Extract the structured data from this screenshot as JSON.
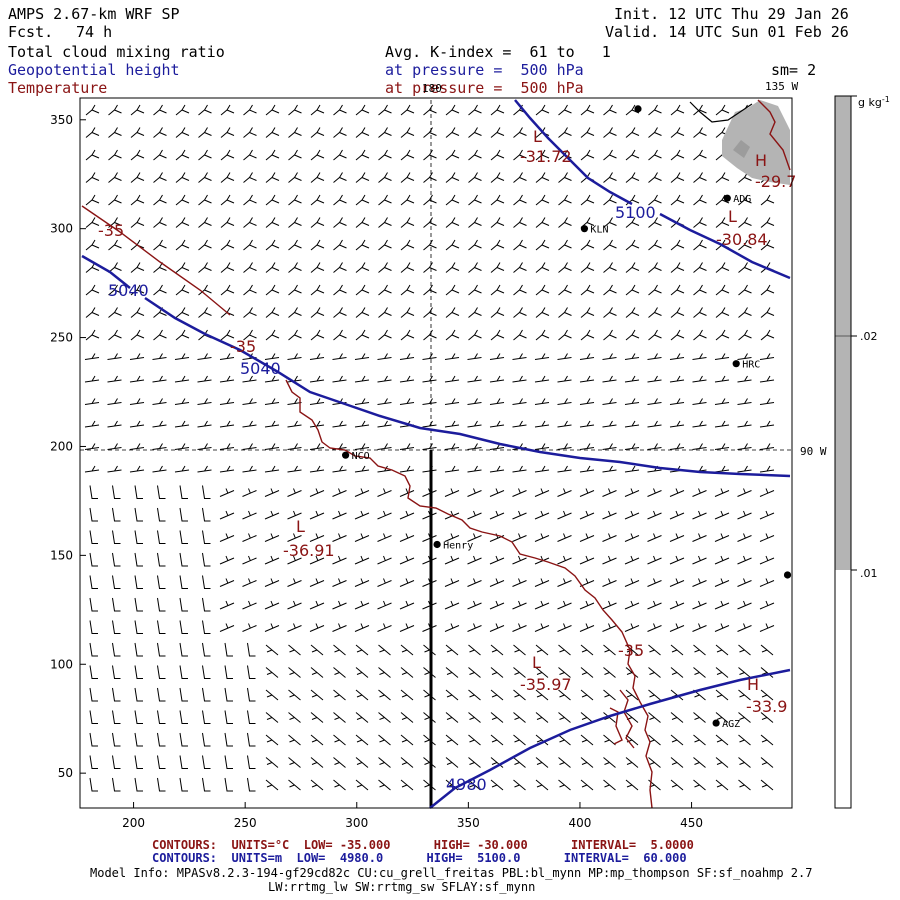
{
  "header": {
    "model": "AMPS 2.67-km WRF SP",
    "fcst_label": "Fcst.",
    "fcst_value": "74 h",
    "init": "Init. 12 UTC Thu 29 Jan 26",
    "valid": "Valid. 14 UTC Sun 01 Feb 26",
    "field1": "Total cloud mixing ratio",
    "field2": "Geopotential height",
    "field3": "Temperature",
    "avg": "Avg. K-index =  61 to   1",
    "pressure1": "at pressure =  500 hPa",
    "pressure2": "at pressure =  500 hPa",
    "smooth": "sm= 2"
  },
  "map": {
    "x_ticks": [
      200,
      250,
      300,
      350,
      400,
      450
    ],
    "y_ticks": [
      50,
      100,
      150,
      200,
      250,
      300,
      350
    ],
    "x_range": [
      176,
      495
    ],
    "y_range": [
      34,
      360
    ],
    "meridian_labels": {
      "m180": "180",
      "m135": "135 W",
      "m90": "90 W"
    },
    "stations": [
      {
        "id": "ADG",
        "x": 466,
        "y": 314
      },
      {
        "id": "KLN",
        "x": 402,
        "y": 300
      },
      {
        "id": "HRC",
        "x": 470,
        "y": 238
      },
      {
        "id": "NCO",
        "x": 295,
        "y": 196
      },
      {
        "id": "Henry",
        "x": 336,
        "y": 155
      },
      {
        "id": "AGZ",
        "x": 461,
        "y": 73
      },
      {
        "id": "",
        "x": 426,
        "y": 355
      },
      {
        "id": "",
        "x": 493,
        "y": 141
      }
    ],
    "temp_labels": [
      "-35",
      "-35",
      "-35",
      "-31.72",
      "-30.84",
      "-29.7",
      "-36.91",
      "-35.97",
      "-33.9"
    ],
    "temp_markers": [
      "L",
      "L",
      "L",
      "L",
      "H",
      "H"
    ],
    "height_labels": [
      "5040",
      "5040",
      "5100",
      "4980"
    ]
  },
  "colorbar": {
    "unit": "g kg",
    "unit_sup": "-1",
    "labels": [
      ".02",
      ".01"
    ]
  },
  "footer": {
    "contours_temp": "CONTOURS:  UNITS=°C  LOW= -35.000      HIGH= -30.000      INTERVAL=  5.0000",
    "contours_height": "CONTOURS:  UNITS=m  LOW=  4980.0      HIGH=  5100.0      INTERVAL=  60.000",
    "model_info": "Model Info: MPASv8.2.3-194-gf29cd82c CU:cu_grell_freitas PBL:bl_mynn MP:mp_thompson SF:sf_noahmp 2.7",
    "model_info2": "LW:rrtmg_lw SW:rrtmg_sw SFLAY:sf_mynn"
  },
  "colors": {
    "height": "#1c1c9c",
    "temperature": "#8a1414",
    "cloud": "#b4b4b4",
    "text": "#000000"
  }
}
